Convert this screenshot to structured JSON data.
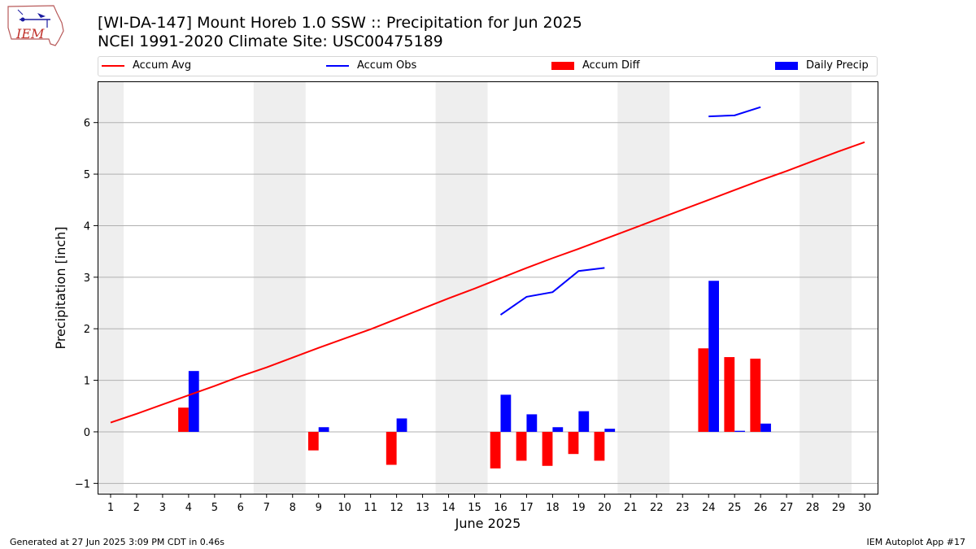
{
  "title_line1": "[WI-DA-147] Mount Horeb 1.0 SSW :: Precipitation for Jun 2025",
  "title_line2": "NCEI 1991-2020 Climate Site: USC00475189",
  "logo_text": "IEM",
  "footer_left": "Generated at 27 Jun 2025 3:09 PM CDT in 0.46s",
  "footer_right": "IEM Autoplot App #17",
  "colors": {
    "accum_avg": "#ff0000",
    "accum_obs": "#0000ff",
    "accum_diff": "#ff0000",
    "daily_precip": "#0000ff",
    "weekend_shade": "#eeeeee",
    "grid": "#b0b0b0"
  },
  "legend": {
    "accum_avg": "Accum Avg",
    "accum_obs": "Accum Obs",
    "accum_diff": "Accum Diff",
    "daily_precip": "Daily Precip"
  },
  "chart_data": {
    "type": "bar",
    "title": "[WI-DA-147] Mount Horeb 1.0 SSW :: Precipitation for Jun 2025",
    "subtitle": "NCEI 1991-2020 Climate Site: USC00475189",
    "xlabel": "June 2025",
    "ylabel": "Precipitation [inch]",
    "xlim": [
      0.5,
      30.5
    ],
    "ylim": [
      -1.2,
      6.8
    ],
    "yticks": [
      -1,
      0,
      1,
      2,
      3,
      4,
      5,
      6
    ],
    "x": [
      1,
      2,
      3,
      4,
      5,
      6,
      7,
      8,
      9,
      10,
      11,
      12,
      13,
      14,
      15,
      16,
      17,
      18,
      19,
      20,
      21,
      22,
      23,
      24,
      25,
      26,
      27,
      28,
      29,
      30
    ],
    "legend_position": "top",
    "grid": "y",
    "weekend_shading": [
      [
        0.5,
        1.5
      ],
      [
        6.5,
        8.5
      ],
      [
        13.5,
        15.5
      ],
      [
        20.5,
        22.5
      ],
      [
        27.5,
        29.5
      ]
    ],
    "series": [
      {
        "name": "Accum Avg",
        "kind": "line",
        "values": [
          0.18,
          0.35,
          0.53,
          0.71,
          0.89,
          1.08,
          1.25,
          1.44,
          1.63,
          1.81,
          1.99,
          2.19,
          2.39,
          2.59,
          2.78,
          2.98,
          3.18,
          3.37,
          3.55,
          3.74,
          3.93,
          4.12,
          4.31,
          4.5,
          4.69,
          4.88,
          5.06,
          5.25,
          5.44,
          5.62
        ]
      },
      {
        "name": "Accum Obs",
        "kind": "line",
        "values": [
          null,
          null,
          null,
          null,
          null,
          null,
          null,
          null,
          null,
          null,
          null,
          null,
          null,
          null,
          null,
          2.27,
          2.62,
          2.71,
          3.12,
          3.18,
          null,
          null,
          null,
          6.12,
          6.14,
          6.3,
          null,
          null,
          null,
          null
        ]
      },
      {
        "name": "Accum Diff",
        "kind": "bar",
        "values": [
          null,
          null,
          null,
          0.47,
          null,
          null,
          null,
          null,
          -0.36,
          null,
          null,
          -0.64,
          null,
          null,
          null,
          -0.71,
          -0.56,
          -0.66,
          -0.43,
          -0.56,
          null,
          null,
          null,
          1.62,
          1.45,
          1.42,
          null,
          null,
          null,
          null
        ]
      },
      {
        "name": "Daily Precip",
        "kind": "bar",
        "values": [
          null,
          null,
          null,
          1.18,
          null,
          null,
          null,
          null,
          0.09,
          null,
          null,
          0.26,
          null,
          null,
          null,
          0.72,
          0.34,
          0.09,
          0.4,
          0.06,
          null,
          null,
          null,
          2.93,
          0.02,
          0.16,
          null,
          null,
          null,
          null
        ]
      }
    ]
  }
}
